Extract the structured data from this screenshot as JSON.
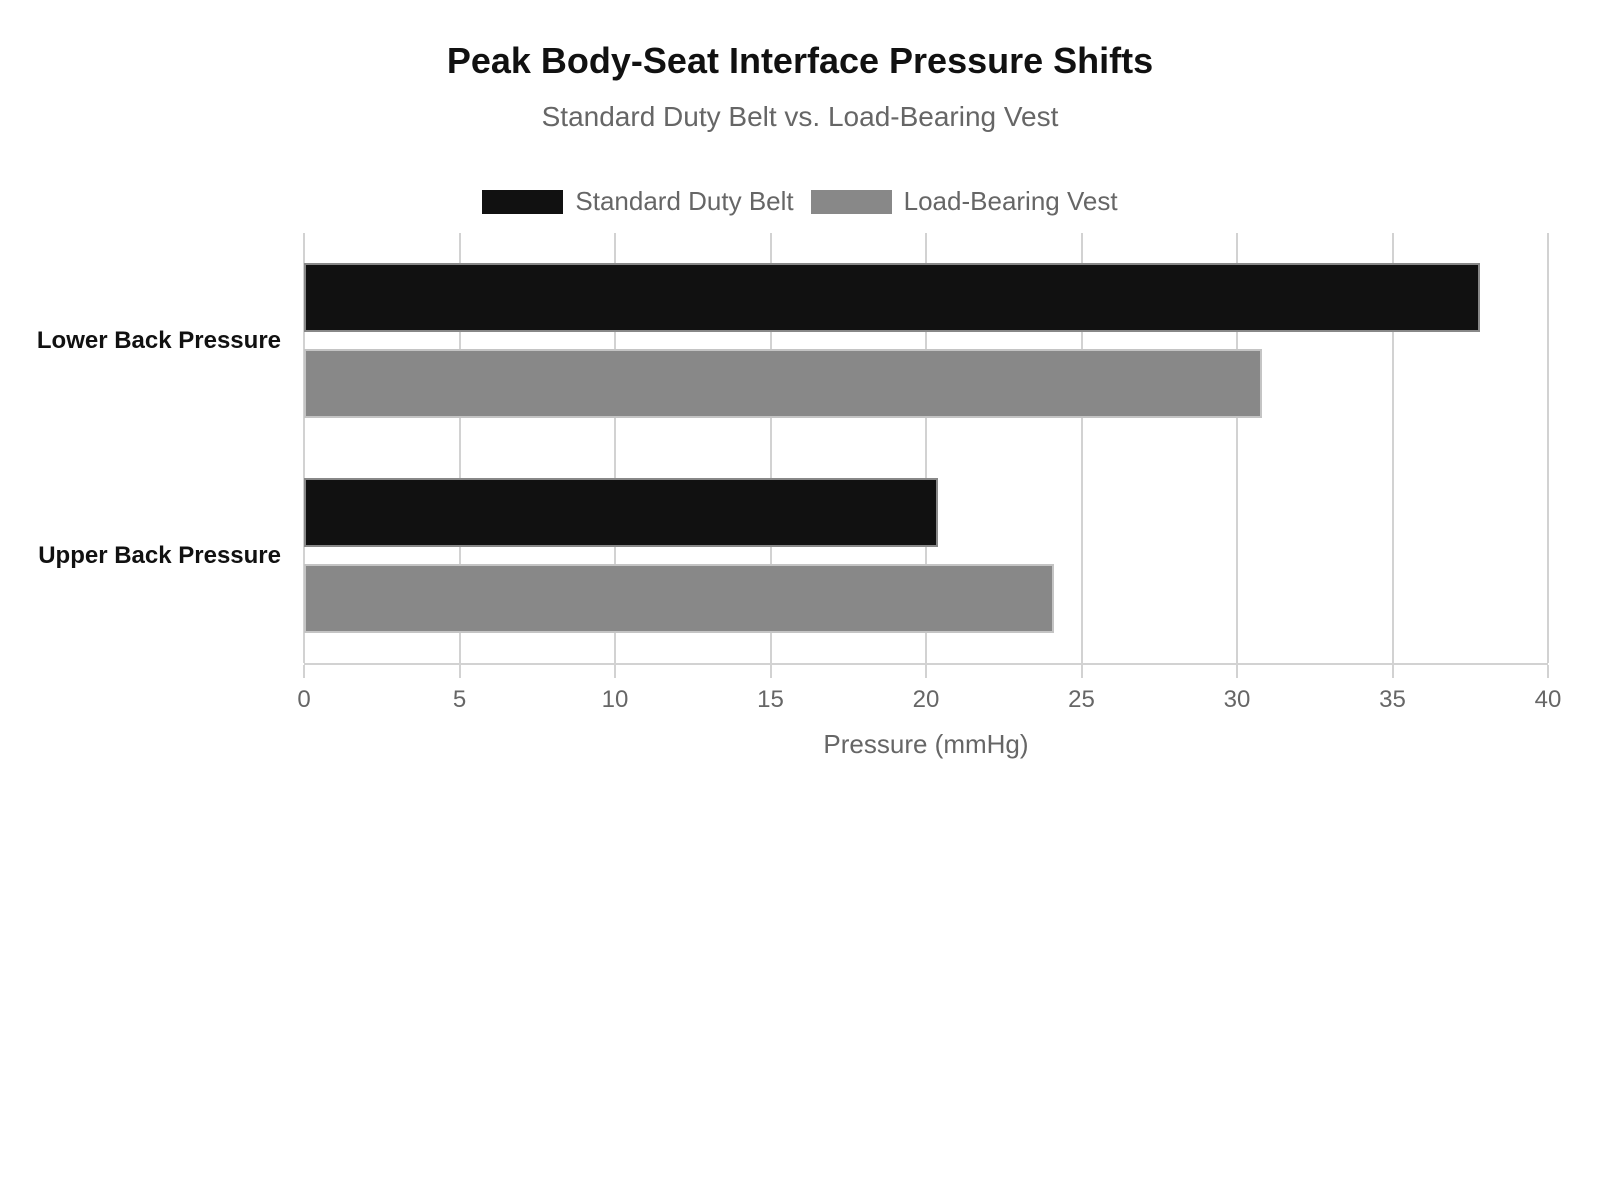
{
  "chart_data": {
    "type": "bar",
    "orientation": "horizontal",
    "title": "Peak Body-Seat Interface Pressure Shifts",
    "subtitle": "Standard Duty Belt vs. Load-Bearing Vest",
    "xlabel": "Pressure (mmHg)",
    "ylabel": "",
    "categories": [
      "Lower Back Pressure",
      "Upper Back Pressure"
    ],
    "series": [
      {
        "name": "Standard Duty Belt",
        "color": "#111111",
        "values": [
          37.8,
          20.4
        ]
      },
      {
        "name": "Load-Bearing Vest",
        "color": "#888888",
        "values": [
          30.8,
          24.1
        ]
      }
    ],
    "xlim": [
      0,
      40
    ],
    "xticks": [
      0,
      5,
      10,
      15,
      20,
      25,
      30,
      35,
      40
    ],
    "grid": true,
    "legend_position": "top-center"
  },
  "colors": {
    "background": "#ffffff",
    "title_text": "#111111",
    "muted_text": "#666666",
    "category_text": "#111111",
    "gridline": "#d2d2d2",
    "bar_border": "rgba(255,255,255,0.5)"
  }
}
